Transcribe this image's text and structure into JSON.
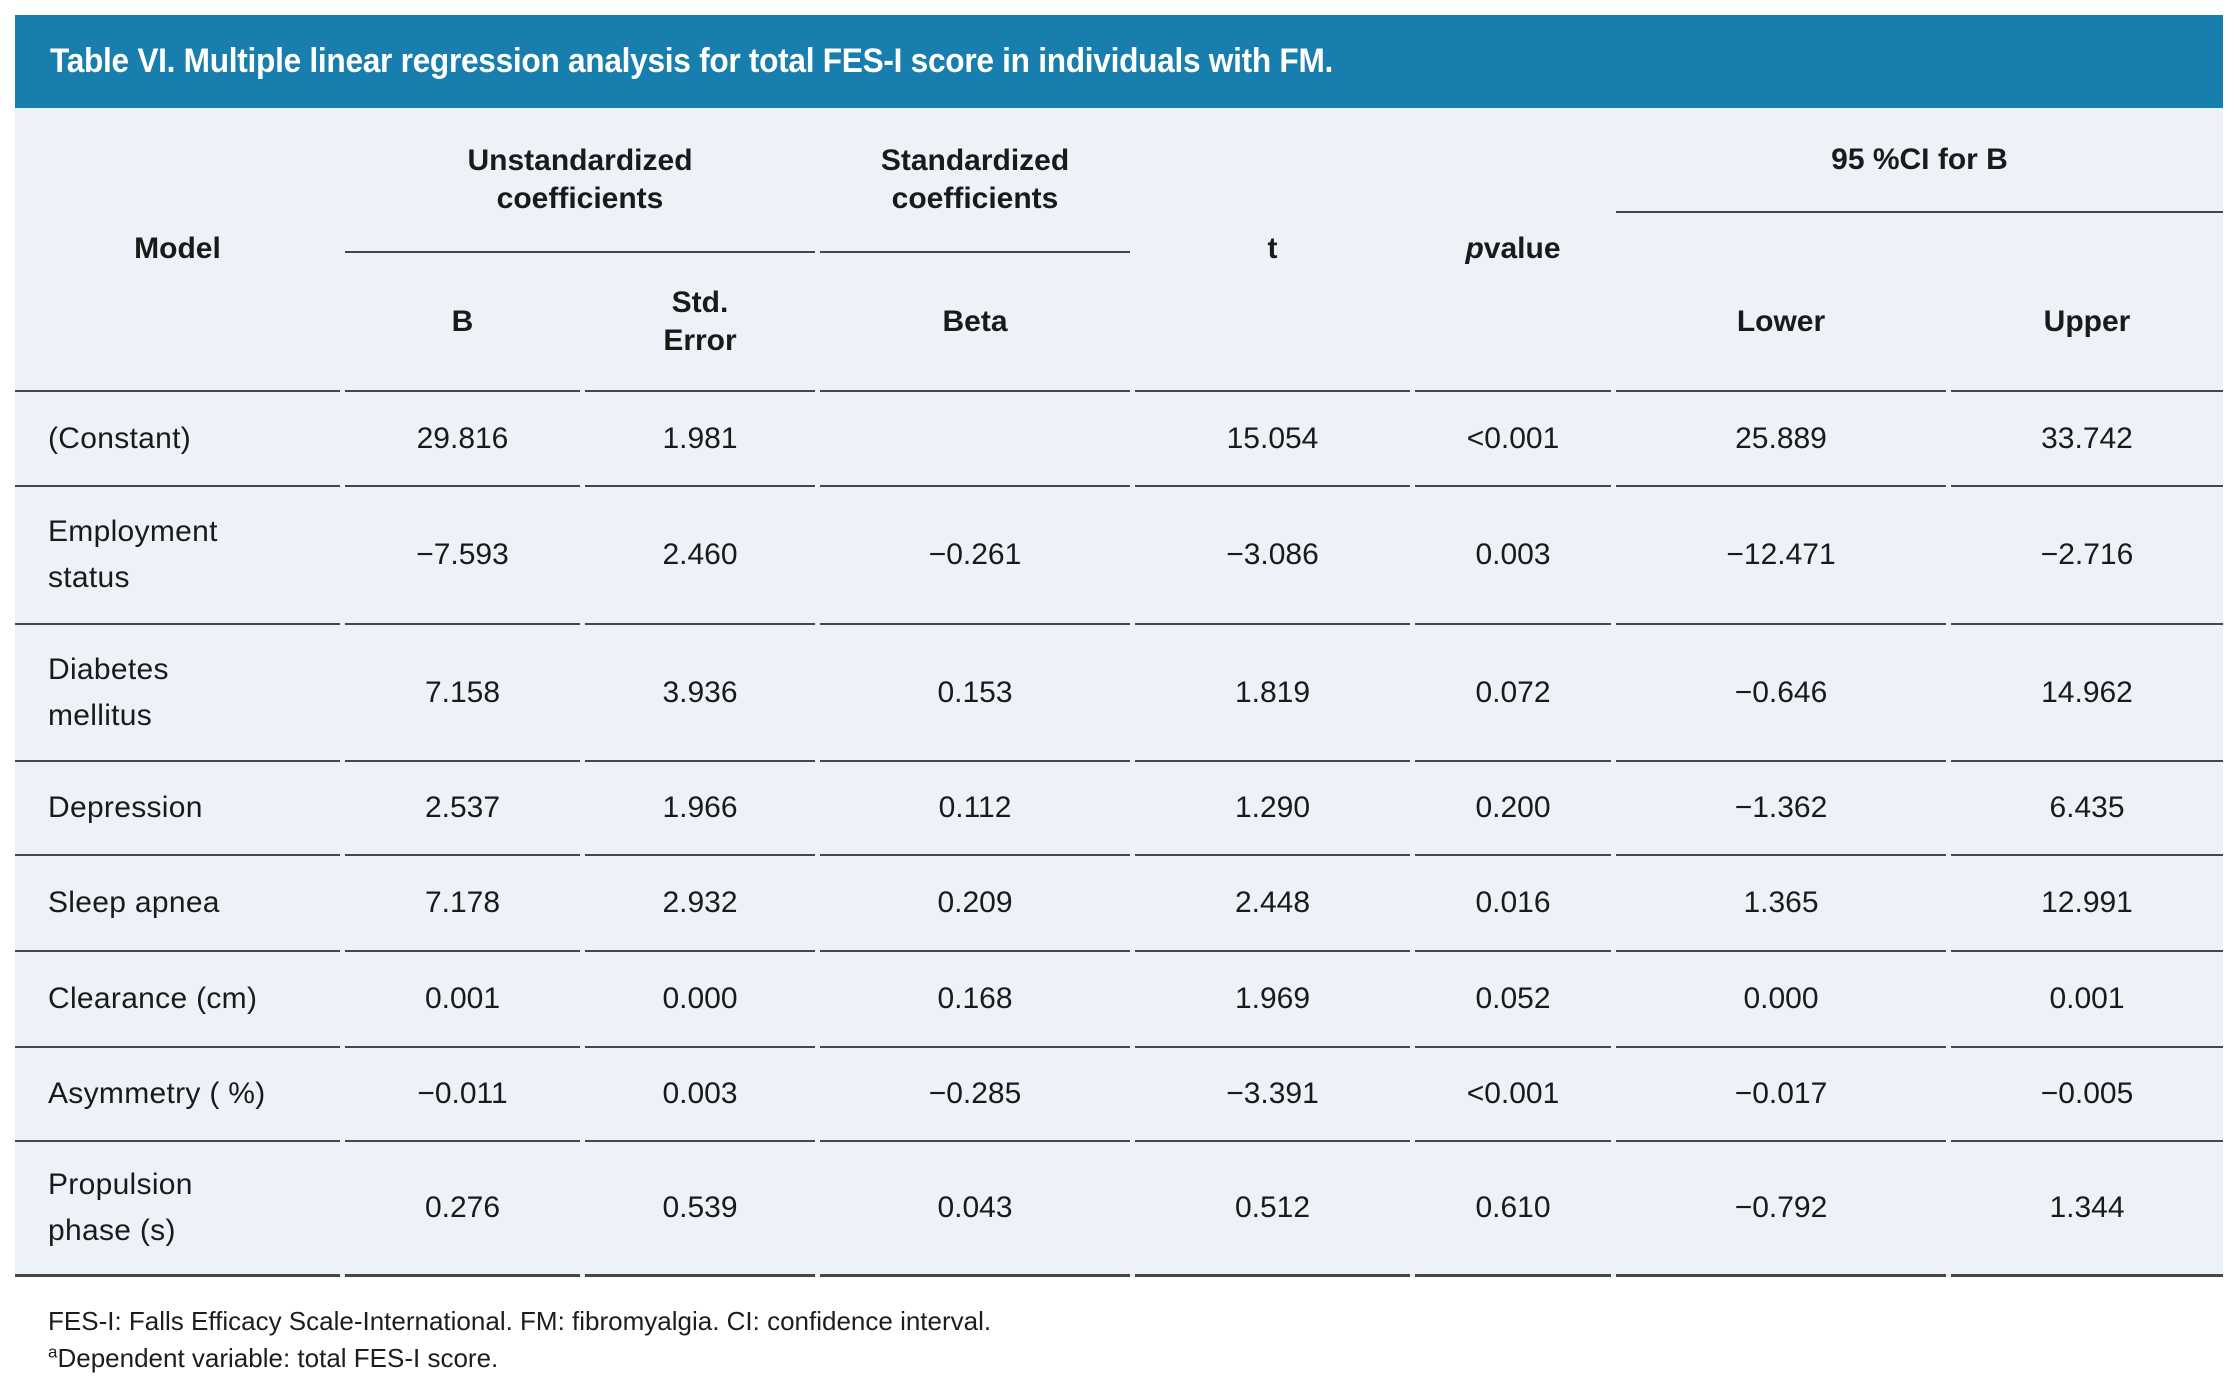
{
  "title_bar": {
    "text": "Table VI. Multiple linear regression analysis for total FES-I score in individuals with FM.",
    "bg_color": "#177ead",
    "text_color": "#ffffff"
  },
  "table": {
    "bg_color": "#edf1f8",
    "rule_color": "#474747",
    "headers": {
      "model": "Model",
      "unstandardized_group": [
        "Unstandardized",
        "coefficients"
      ],
      "standardized_group": [
        "Standardized",
        "coefficients"
      ],
      "b": "B",
      "std_error": [
        "Std.",
        "Error"
      ],
      "beta": "Beta",
      "t": "t",
      "p_italic": "p",
      "p_rest": " value",
      "ci_group": "95 %CI for B",
      "lower": "Lower",
      "upper": "Upper"
    },
    "rows": [
      {
        "model": [
          "(Constant)"
        ],
        "b": "29.816",
        "se": "1.981",
        "beta": "",
        "t": "15.054",
        "p": "<0.001",
        "lower": "25.889",
        "upper": "33.742"
      },
      {
        "model": [
          "Employment",
          "status"
        ],
        "b": "−7.593",
        "se": "2.460",
        "beta": "−0.261",
        "t": "−3.086",
        "p": "0.003",
        "lower": "−12.471",
        "upper": "−2.716"
      },
      {
        "model": [
          "Diabetes",
          "mellitus"
        ],
        "b": "7.158",
        "se": "3.936",
        "beta": "0.153",
        "t": "1.819",
        "p": "0.072",
        "lower": "−0.646",
        "upper": "14.962"
      },
      {
        "model": [
          "Depression"
        ],
        "b": "2.537",
        "se": "1.966",
        "beta": "0.112",
        "t": "1.290",
        "p": "0.200",
        "lower": "−1.362",
        "upper": "6.435"
      },
      {
        "model": [
          "Sleep apnea"
        ],
        "b": "7.178",
        "se": "2.932",
        "beta": "0.209",
        "t": "2.448",
        "p": "0.016",
        "lower": "1.365",
        "upper": "12.991"
      },
      {
        "model": [
          "Clearance (cm)"
        ],
        "b": "0.001",
        "se": "0.000",
        "beta": "0.168",
        "t": "1.969",
        "p": "0.052",
        "lower": "0.000",
        "upper": "0.001"
      },
      {
        "model": [
          "Asymmetry ( %)"
        ],
        "b": "−0.011",
        "se": "0.003",
        "beta": "−0.285",
        "t": "−3.391",
        "p": "<0.001",
        "lower": "−0.017",
        "upper": "−0.005"
      },
      {
        "model": [
          "Propulsion",
          "phase (s)"
        ],
        "b": "0.276",
        "se": "0.539",
        "beta": "0.043",
        "t": "0.512",
        "p": "0.610",
        "lower": "−0.792",
        "upper": "1.344"
      }
    ]
  },
  "footnotes": {
    "line1": "FES-I: Falls Efficacy Scale-International. FM: fibromyalgia. CI: confidence interval.",
    "line2_sup": "a",
    "line2_text": "Dependent variable: total FES-I score."
  }
}
